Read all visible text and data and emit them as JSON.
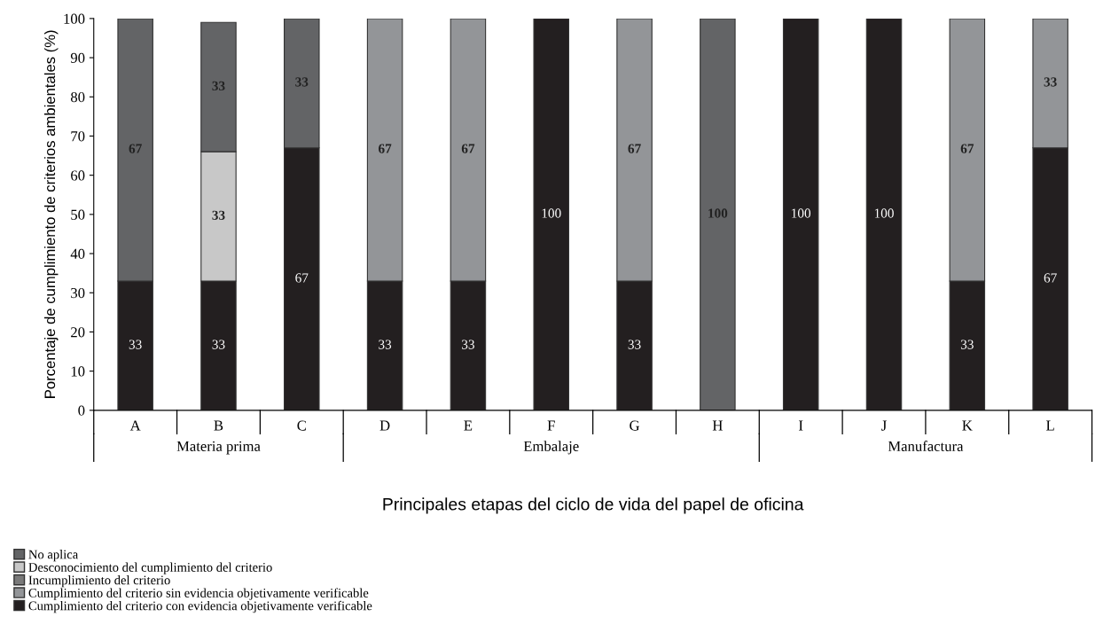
{
  "chart_data": {
    "type": "bar",
    "stacked": true,
    "xlabel": "Principales etapas del ciclo de vida del papel de oficina",
    "ylabel": "Porcentaje de cumplimiento de criterios ambientales (%)",
    "categories": [
      "A",
      "B",
      "C",
      "D",
      "E",
      "F",
      "G",
      "H",
      "I",
      "J",
      "K",
      "L"
    ],
    "series": [
      {
        "name": "Cumplimiento del criterio con evidencia objetivamente verificable",
        "color": "#231f20",
        "values": [
          33,
          33,
          67,
          33,
          33,
          100,
          33,
          null,
          100,
          100,
          33,
          67
        ]
      },
      {
        "name": "Cumplimiento del criterio sin evidencia objetivamente verificable",
        "color": "#939598",
        "values": [
          null,
          null,
          null,
          67,
          67,
          null,
          67,
          null,
          null,
          null,
          67,
          33
        ]
      },
      {
        "name": "Incumplimiento del criterio",
        "color": "#7a7a7a",
        "values": [
          null,
          null,
          null,
          null,
          null,
          null,
          null,
          null,
          null,
          null,
          null,
          null
        ]
      },
      {
        "name": "Desconocimiento del cumplimiento del criterio",
        "color": "#c8c8c8",
        "values": [
          null,
          33,
          null,
          null,
          null,
          null,
          null,
          null,
          null,
          null,
          null,
          null
        ]
      },
      {
        "name": "No aplica",
        "color": "#636466",
        "values": [
          67,
          33,
          33,
          null,
          null,
          null,
          null,
          100,
          null,
          null,
          null,
          null
        ]
      }
    ],
    "annotations": [
      "Materia prima",
      "Embalaje",
      "Manufactura"
    ],
    "ylim": [
      0,
      100
    ],
    "yticks": [
      0,
      10,
      20,
      30,
      40,
      50,
      60,
      70,
      80,
      90,
      100
    ],
    "data_labels": true,
    "grid": false,
    "legend": "bottom left"
  }
}
